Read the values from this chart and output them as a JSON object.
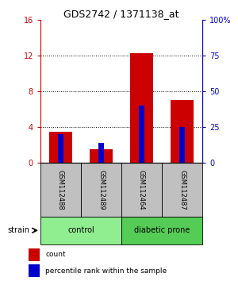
{
  "title": "GDS2742 / 1371138_at",
  "samples": [
    "GSM112488",
    "GSM112489",
    "GSM112464",
    "GSM112487"
  ],
  "groups": [
    {
      "label": "control",
      "indices": [
        0,
        1
      ],
      "color": "#90EE90"
    },
    {
      "label": "diabetic prone",
      "indices": [
        2,
        3
      ],
      "color": "#55CC55"
    }
  ],
  "red_values": [
    3.5,
    1.5,
    12.3,
    7.0
  ],
  "blue_values_pct": [
    20,
    14,
    40,
    25
  ],
  "ylim_left": [
    0,
    16
  ],
  "ylim_right": [
    0,
    100
  ],
  "yticks_left": [
    0,
    4,
    8,
    12,
    16
  ],
  "ytick_labels_left": [
    "0",
    "4",
    "8",
    "12",
    "16"
  ],
  "yticks_right": [
    0,
    25,
    50,
    75,
    100
  ],
  "ytick_labels_right": [
    "0",
    "25",
    "50",
    "75",
    "100%"
  ],
  "red_color": "#CC0000",
  "blue_color": "#0000CC",
  "red_bar_width": 0.55,
  "blue_bar_width": 0.12,
  "legend_count": "count",
  "legend_pct": "percentile rank within the sample",
  "strain_label": "strain",
  "gray_bg": "#C0C0C0",
  "group_green_light": "#90EE90",
  "group_green_dark": "#55CC55"
}
